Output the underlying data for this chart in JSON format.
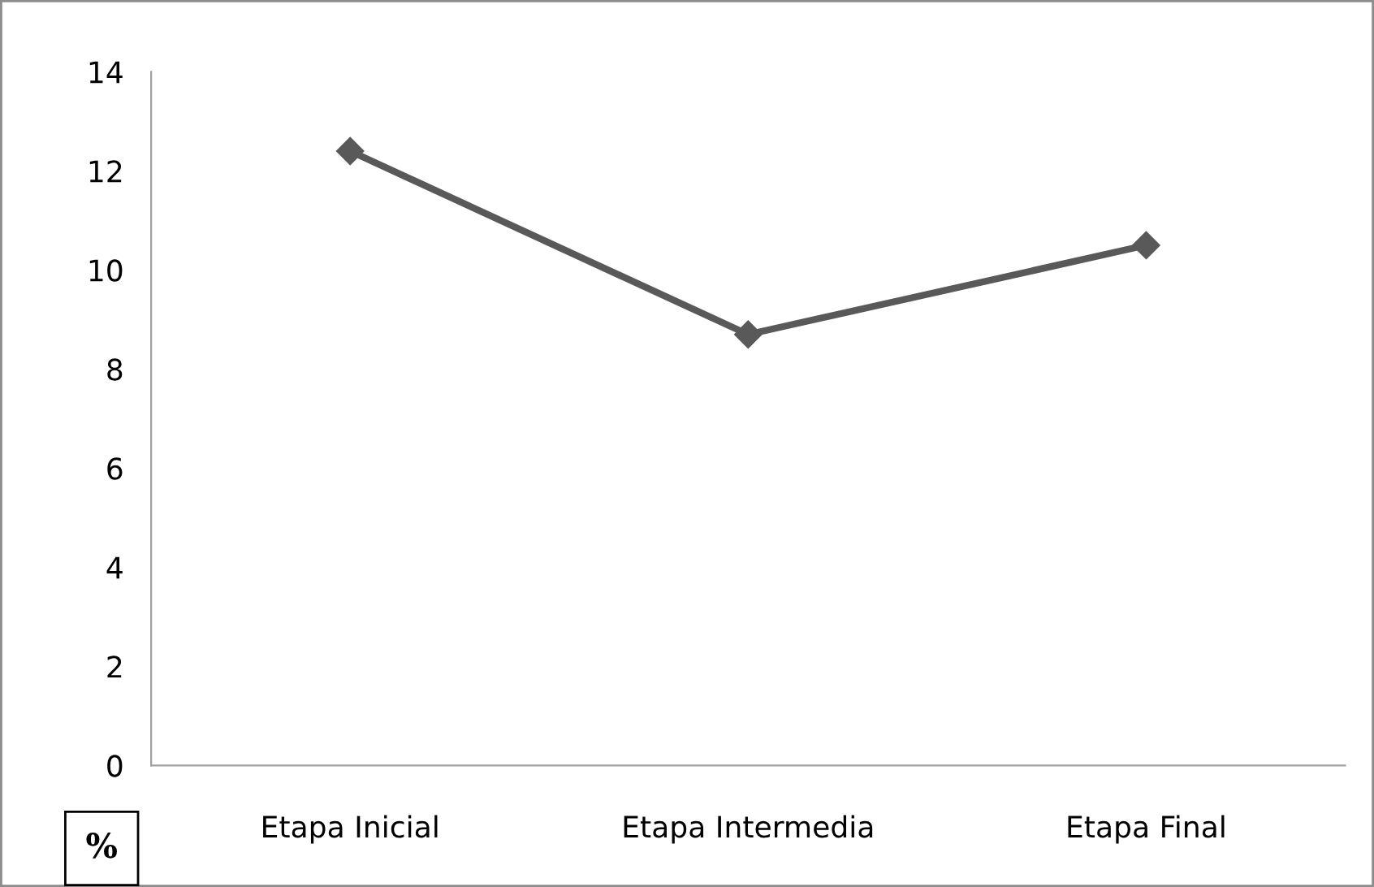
{
  "chart_data": {
    "type": "line",
    "ylabel": "%",
    "categories": [
      "Etapa Inicial",
      "Etapa Intermedia",
      "Etapa Final"
    ],
    "series": [
      {
        "color": "#595959",
        "values": [
          12.4,
          8.7,
          10.5
        ]
      }
    ],
    "ylim": [
      0,
      14
    ],
    "yticks": [
      0,
      2,
      4,
      6,
      8,
      10,
      12,
      14
    ],
    "grid": false,
    "legend": false,
    "marker": "diamond",
    "line_style": "solid"
  }
}
